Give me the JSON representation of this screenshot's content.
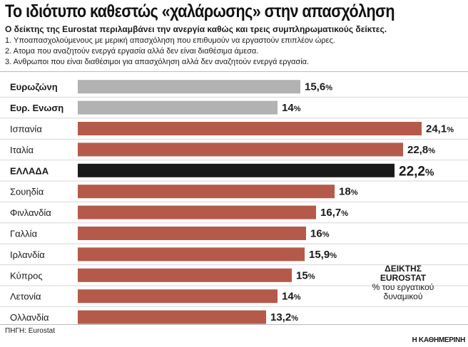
{
  "header": {
    "title": "Το ιδιότυπο καθεστώς «χαλάρωσης» στην απασχόληση",
    "subtitle": "Ο δείκτης της Eurostat περιλαμβάνει την ανεργία καθώς και τρεις συμπληρωματικούς δείκτες.",
    "notes": [
      "1. Υποαπασχολούμενους με μερική απασχόληση που επιθυμούν να εργαστούν επιπλέον ώρες.",
      "2. Ατομα που αναζητούν ενεργά εργασία αλλά δεν είναι διαθέσιμα άμεσα.",
      "3. Ανθρωποι που είναι διαθέσιμοι για απασχόληση αλλά δεν αναζητούν ενεργά εργασία."
    ]
  },
  "legend": {
    "line1": "ΔΕΙΚΤΗΣ",
    "line2": "EUROSTAT",
    "line3": "% του εργατικού",
    "line4": "δυναμικού"
  },
  "footer": {
    "source": "ΠΗΓΗ: Eurostat",
    "brand": "Η ΚΑΘΗΜΕΡΙΝΗ"
  },
  "colors": {
    "aggregate": "#b2b2b2",
    "country": "#b55a4b",
    "highlight": "#1a1a1a"
  },
  "chart_data": {
    "type": "bar",
    "orientation": "horizontal",
    "title": "Το ιδιότυπο καθεστώς «χαλάρωσης» στην απασχόληση",
    "unit": "%",
    "categories": [
      "Ευρωζώνη",
      "Ευρ. Ενωση",
      "Ισπανία",
      "Ιταλία",
      "ΕΛΛΑΔΑ",
      "Σουηδία",
      "Φινλανδία",
      "Γαλλία",
      "Ιρλανδία",
      "Κύπρος",
      "Λετονία",
      "Ολλανδία"
    ],
    "values": [
      15.6,
      14,
      24.1,
      22.8,
      22.2,
      18,
      16.7,
      16,
      15.9,
      15,
      14,
      13.2
    ],
    "value_labels": [
      "15,6",
      "14",
      "24,1",
      "22,8",
      "22,2",
      "18",
      "16,7",
      "16",
      "15,9",
      "15",
      "14",
      "13,2"
    ],
    "bar_kind": [
      "aggregate",
      "aggregate",
      "country",
      "country",
      "highlight",
      "country",
      "country",
      "country",
      "country",
      "country",
      "country",
      "country"
    ],
    "bold_label": [
      true,
      true,
      false,
      false,
      true,
      false,
      false,
      false,
      false,
      false,
      false,
      false
    ],
    "xlim": [
      0,
      24.1
    ],
    "grid": false,
    "legend_position": "bottom-right"
  }
}
